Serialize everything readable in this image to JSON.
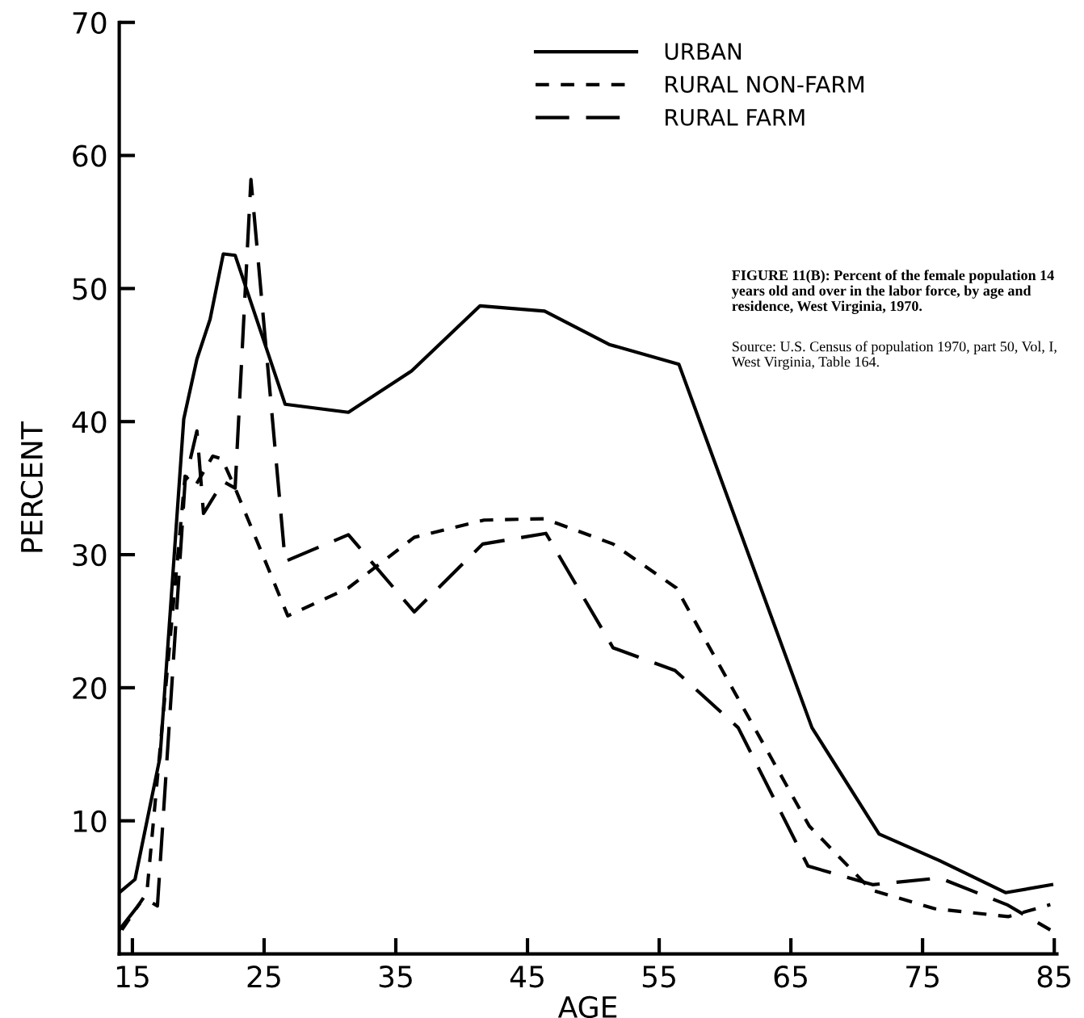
{
  "chart_data": {
    "type": "line",
    "xlabel": "AGE",
    "ylabel": "PERCENT",
    "xlim": [
      14,
      85.2
    ],
    "ylim": [
      0,
      70
    ],
    "xticks": [
      15,
      25,
      35,
      45,
      55,
      65,
      75,
      85
    ],
    "yticks": [
      10,
      20,
      30,
      40,
      50,
      60,
      70
    ],
    "grid": false,
    "legend": "top",
    "marker": "none",
    "series": [
      {
        "name": "URBAN",
        "color": "#000000",
        "line_style": "solid",
        "x": [
          14.0,
          15.2,
          17.1,
          18.9,
          19.9,
          20.9,
          21.9,
          22.8,
          26.6,
          31.4,
          36.2,
          41.4,
          46.3,
          51.2,
          56.5,
          66.6,
          71.7,
          76.3,
          81.3,
          84.8
        ],
        "values": [
          4.6,
          5.6,
          14.8,
          40.2,
          44.7,
          47.7,
          52.6,
          52.5,
          41.3,
          40.7,
          43.8,
          48.7,
          48.3,
          45.8,
          44.3,
          17.0,
          9.0,
          7.0,
          4.6,
          5.2
        ]
      },
      {
        "name": "RURAL NON-FARM",
        "color": "#000000",
        "line_style": "dotted",
        "x": [
          14.2,
          16.1,
          19.0,
          19.8,
          21.1,
          21.8,
          22.8,
          26.8,
          31.4,
          36.4,
          41.7,
          46.3,
          51.5,
          56.3,
          66.4,
          71.1,
          75.9,
          81.5,
          84.7
        ],
        "values": [
          1.8,
          4.6,
          35.9,
          35.2,
          37.4,
          37.2,
          35.0,
          25.4,
          27.5,
          31.3,
          32.6,
          32.7,
          30.8,
          27.5,
          9.6,
          4.8,
          3.4,
          2.8,
          3.7
        ]
      },
      {
        "name": "RURAL FARM",
        "color": "#000000",
        "line_style": "dashed",
        "x": [
          14.0,
          15.9,
          16.9,
          19.0,
          19.9,
          20.4,
          21.9,
          22.8,
          24.0,
          26.6,
          31.4,
          36.4,
          41.6,
          46.4,
          51.5,
          56.2,
          61.0,
          66.3,
          71.2,
          76.3,
          81.4,
          84.7
        ],
        "values": [
          1.8,
          4.2,
          3.6,
          35.5,
          39.3,
          33.1,
          35.5,
          35.0,
          58.2,
          29.5,
          31.5,
          25.7,
          30.8,
          31.6,
          23.0,
          21.3,
          17.0,
          6.6,
          5.2,
          5.7,
          3.7,
          1.8
        ]
      }
    ],
    "annotations": [
      "FIGURE 11(B): Percent of the female population 14 years old and over in the labor force, by age and residence, West Virginia, 1970.",
      "Source: U.S. Census of population 1970, part 50, Vol, I, West Virginia, Table 164."
    ]
  }
}
